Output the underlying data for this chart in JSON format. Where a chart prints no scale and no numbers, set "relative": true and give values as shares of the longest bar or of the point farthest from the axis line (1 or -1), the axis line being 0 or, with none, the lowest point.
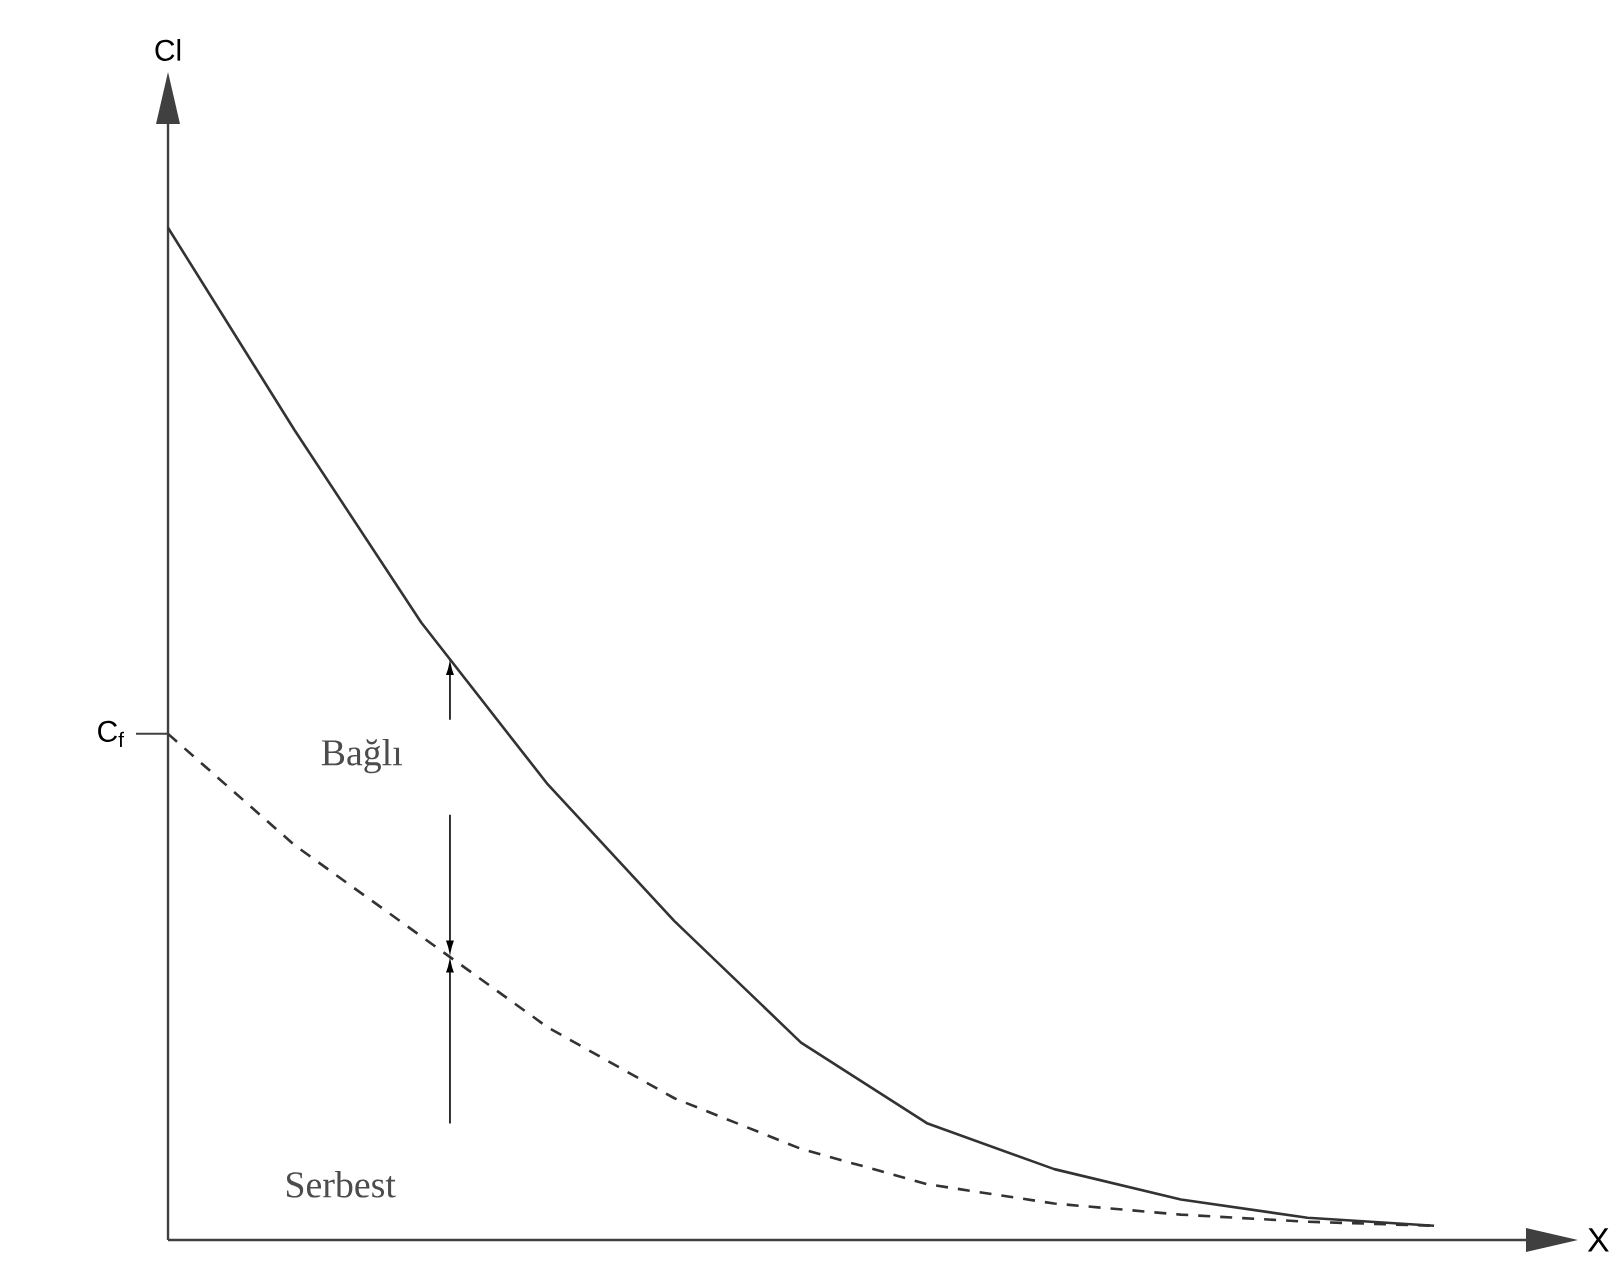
{
  "chart_data": {
    "type": "line",
    "relative": true,
    "xlabel": "X",
    "categories": [
      null,
      null,
      null,
      null,
      null,
      null,
      null,
      null,
      null,
      null,
      null
    ],
    "series": [
      {
        "color": "#333333",
        "line_style": "solid",
        "values": [
          1,
          0.8,
          0.61,
          0.45,
          0.315,
          0.195,
          0.115,
          0.07,
          0.04,
          0.022,
          0.014
        ]
      },
      {
        "color": "#333333",
        "line_style": "dashed",
        "values": [
          0.5,
          0.39,
          0.3,
          0.21,
          0.14,
          0.09,
          0.055,
          0.036,
          0.025,
          0.018,
          0.014
        ]
      }
    ],
    "annotations": [
      "Cl",
      "C$_{f}$",
      "Bağlı",
      "Serbest"
    ]
  }
}
